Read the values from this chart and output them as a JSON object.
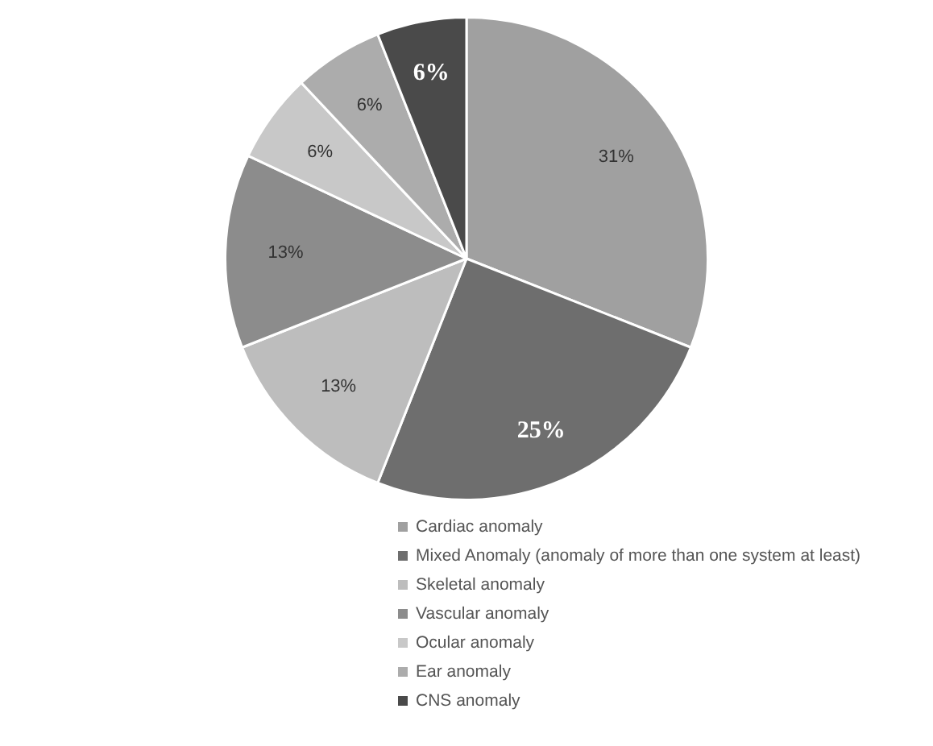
{
  "chart_data": {
    "type": "pie",
    "categories": [
      "Cardiac anomaly",
      "Mixed Anomaly (anomaly of more than one system at least)",
      "Skeletal anomaly",
      "Vascular anomaly",
      "Ocular anomaly",
      "Ear anomaly",
      "CNS anomaly"
    ],
    "values": [
      31,
      25,
      13,
      13,
      6,
      6,
      6
    ],
    "value_labels": [
      "31%",
      "25%",
      "13%",
      "13%",
      "6%",
      "6%",
      "6%"
    ],
    "colors": [
      "#a0a0a0",
      "#6e6e6e",
      "#bdbdbd",
      "#8c8c8c",
      "#c8c8c8",
      "#acacac",
      "#4a4a4a"
    ],
    "legend": "bottom"
  }
}
